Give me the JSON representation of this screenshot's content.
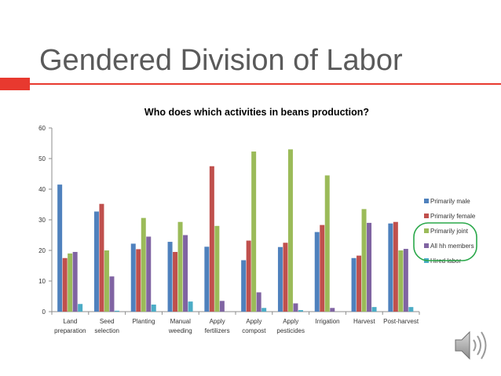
{
  "slide": {
    "title": "Gendered Division of Labor"
  },
  "icons": {
    "speaker": "speaker-icon"
  },
  "colors": {
    "accent": "#e8392f",
    "series": [
      "#4f81bd",
      "#c0504d",
      "#9bbb59",
      "#8064a2",
      "#4bacc6"
    ],
    "legend_highlight": "#2aa84a"
  },
  "chart_data": {
    "type": "bar",
    "title": "Who does which activities in beans production?",
    "xlabel": "",
    "ylabel": "",
    "ylim": [
      0,
      60
    ],
    "yticks": [
      0,
      10,
      20,
      30,
      40,
      50,
      60
    ],
    "grid": false,
    "legend_position": "right",
    "categories": [
      [
        "Land",
        "preparation"
      ],
      [
        "Seed",
        "selection"
      ],
      [
        "Planting"
      ],
      [
        "Manual",
        "weeding"
      ],
      [
        "Apply",
        "fertilizers"
      ],
      [
        "Apply",
        "compost"
      ],
      [
        "Apply",
        "pesticides"
      ],
      [
        "Irrigation"
      ],
      [
        "Harvest"
      ],
      [
        "Post-harvest"
      ]
    ],
    "series": [
      {
        "name": "Primarily male",
        "values": [
          41.5,
          32.7,
          22.2,
          22.8,
          21.2,
          16.8,
          21.1,
          26.0,
          17.5,
          28.8
        ]
      },
      {
        "name": "Primarily female",
        "values": [
          17.5,
          35.2,
          20.4,
          19.5,
          47.5,
          23.2,
          22.5,
          28.3,
          18.3,
          29.3
        ]
      },
      {
        "name": "Primarily joint",
        "values": [
          19.0,
          20.0,
          30.6,
          29.3,
          28.0,
          52.3,
          53.0,
          44.5,
          33.5,
          20.0
        ]
      },
      {
        "name": "All hh members",
        "values": [
          19.5,
          11.5,
          24.5,
          25.0,
          3.5,
          6.3,
          2.7,
          1.2,
          29.0,
          20.5
        ]
      },
      {
        "name": "Hired labor",
        "values": [
          2.5,
          0.3,
          2.3,
          3.3,
          0.0,
          1.2,
          0.5,
          0.0,
          1.5,
          1.5
        ]
      }
    ]
  }
}
